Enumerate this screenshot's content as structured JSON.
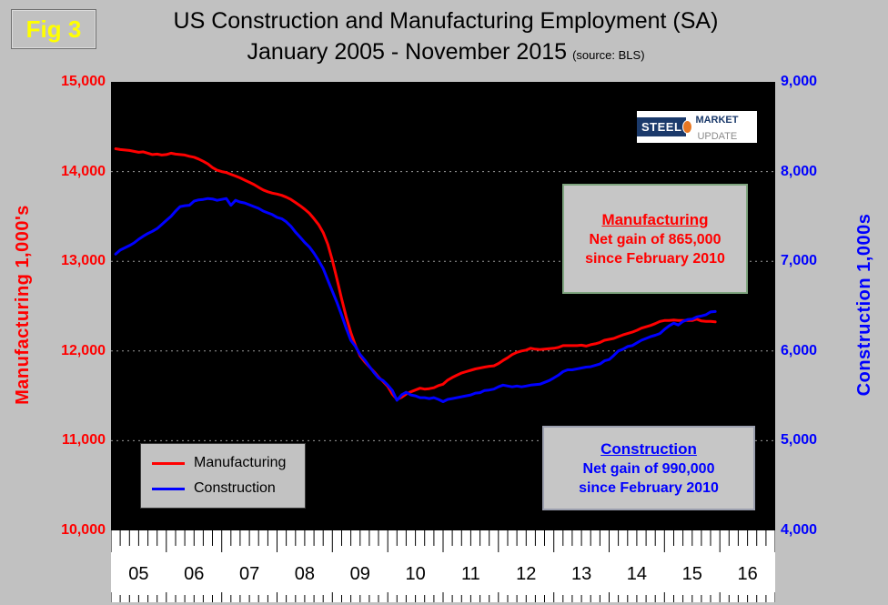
{
  "fig_label": "Fig 3",
  "title": {
    "line1": "US Construction and Manufacturing Employment (SA)",
    "line2": "January 2005 - November 2015",
    "source": "(source: BLS)"
  },
  "logo": {
    "steel": "STEEL",
    "market": "MARKET",
    "update": "UPDATE"
  },
  "annotations": {
    "manufacturing": {
      "heading": "Manufacturing",
      "line1": "Net gain of 865,000",
      "line2": "since February 2010"
    },
    "construction": {
      "heading": "Construction",
      "line1": "Net gain of 990,000",
      "line2": "since February 2010"
    }
  },
  "legend": {
    "items": [
      {
        "label": "Manufacturing",
        "color": "#ff0000"
      },
      {
        "label": "Construction",
        "color": "#0000ff"
      }
    ]
  },
  "colors": {
    "manufacturing": "#ff0000",
    "construction": "#0000ff",
    "plot_bg": "#000000",
    "page_bg": "#c1c1c1",
    "grid": "#9a9a9a",
    "fig_label": "#ffff00"
  },
  "axes": {
    "left": {
      "title": "Manufacturing  1,000's",
      "ticks": [
        "15,000",
        "14,000",
        "13,000",
        "12,000",
        "11,000",
        "10,000"
      ]
    },
    "right": {
      "title": "Construction 1,000s",
      "ticks": [
        "9,000",
        "8,000",
        "7,000",
        "6,000",
        "5,000",
        "4,000"
      ]
    },
    "x": {
      "labels": [
        "05",
        "06",
        "07",
        "08",
        "09",
        "10",
        "11",
        "12",
        "13",
        "14",
        "15",
        "16"
      ]
    }
  },
  "chart_data": {
    "type": "line",
    "title": "US Construction and Manufacturing Employment (SA), January 2005 - November 2015",
    "x_unit": "month",
    "x_start": "2005-01",
    "x_end": "2015-11",
    "x_axis_span_months": 144,
    "x_tick_labels": [
      "05",
      "06",
      "07",
      "08",
      "09",
      "10",
      "11",
      "12",
      "13",
      "14",
      "15",
      "16"
    ],
    "grid": "horizontal-dashed",
    "legend_position": "lower-left",
    "left_axis": {
      "label": "Manufacturing 1,000's",
      "range": [
        10000,
        15000
      ],
      "ticks": [
        15000,
        14000,
        13000,
        12000,
        11000,
        10000
      ]
    },
    "right_axis": {
      "label": "Construction 1,000s",
      "range": [
        4000,
        9000
      ],
      "ticks": [
        9000,
        8000,
        7000,
        6000,
        5000,
        4000
      ]
    },
    "series": [
      {
        "name": "Manufacturing",
        "axis": "left",
        "color": "#ff0000",
        "values": [
          14255,
          14245,
          14240,
          14235,
          14225,
          14215,
          14220,
          14205,
          14190,
          14195,
          14185,
          14190,
          14205,
          14195,
          14190,
          14185,
          14170,
          14160,
          14140,
          14115,
          14085,
          14045,
          14015,
          14000,
          13990,
          13970,
          13950,
          13930,
          13905,
          13880,
          13855,
          13825,
          13795,
          13775,
          13760,
          13750,
          13735,
          13715,
          13690,
          13655,
          13620,
          13580,
          13535,
          13475,
          13410,
          13320,
          13190,
          13010,
          12800,
          12580,
          12380,
          12205,
          12060,
          11945,
          11880,
          11825,
          11770,
          11710,
          11660,
          11605,
          11520,
          11460,
          11485,
          11520,
          11545,
          11565,
          11585,
          11575,
          11580,
          11590,
          11615,
          11630,
          11675,
          11705,
          11730,
          11755,
          11770,
          11785,
          11800,
          11810,
          11820,
          11830,
          11835,
          11860,
          11895,
          11925,
          11960,
          11985,
          12000,
          12010,
          12030,
          12020,
          12015,
          12020,
          12025,
          12030,
          12040,
          12060,
          12060,
          12060,
          12060,
          12065,
          12055,
          12070,
          12080,
          12095,
          12120,
          12130,
          12140,
          12160,
          12180,
          12195,
          12210,
          12230,
          12255,
          12270,
          12285,
          12305,
          12330,
          12340,
          12340,
          12345,
          12340,
          12340,
          12340,
          12340,
          12355,
          12335,
          12330,
          12330,
          12325
        ]
      },
      {
        "name": "Construction",
        "axis": "right",
        "color": "#0000ff",
        "values": [
          7080,
          7125,
          7150,
          7175,
          7205,
          7245,
          7280,
          7310,
          7335,
          7365,
          7410,
          7455,
          7500,
          7560,
          7610,
          7620,
          7625,
          7670,
          7685,
          7690,
          7700,
          7695,
          7680,
          7690,
          7700,
          7625,
          7680,
          7660,
          7650,
          7630,
          7610,
          7590,
          7560,
          7540,
          7520,
          7490,
          7475,
          7440,
          7390,
          7325,
          7270,
          7210,
          7160,
          7090,
          7010,
          6920,
          6790,
          6665,
          6540,
          6400,
          6255,
          6120,
          6050,
          5960,
          5900,
          5830,
          5760,
          5700,
          5670,
          5620,
          5560,
          5450,
          5510,
          5540,
          5510,
          5500,
          5480,
          5480,
          5470,
          5480,
          5460,
          5435,
          5460,
          5470,
          5480,
          5490,
          5500,
          5510,
          5530,
          5535,
          5560,
          5565,
          5575,
          5600,
          5620,
          5610,
          5600,
          5610,
          5600,
          5610,
          5620,
          5625,
          5630,
          5650,
          5670,
          5700,
          5730,
          5770,
          5790,
          5790,
          5800,
          5810,
          5820,
          5825,
          5840,
          5855,
          5890,
          5905,
          5950,
          6000,
          6020,
          6050,
          6060,
          6090,
          6120,
          6140,
          6160,
          6175,
          6195,
          6240,
          6280,
          6310,
          6290,
          6330,
          6350,
          6355,
          6380,
          6390,
          6405,
          6435,
          6440
        ]
      }
    ]
  }
}
